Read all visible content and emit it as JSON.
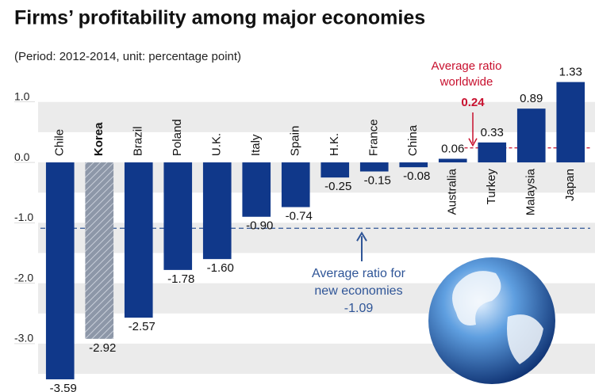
{
  "chart_data": {
    "type": "bar",
    "title": "Firms’ profitability among major economies",
    "subtitle": "(Period: 2012-2014, unit: percentage point)",
    "categories": [
      "Chile",
      "Korea",
      "Brazil",
      "Poland",
      "U.K.",
      "Italy",
      "Spain",
      "H.K.",
      "France",
      "China",
      "Australia",
      "Turkey",
      "Malaysia",
      "Japan"
    ],
    "values": [
      -3.59,
      -2.92,
      -2.57,
      -1.78,
      -1.6,
      -0.9,
      -0.74,
      -0.25,
      -0.15,
      -0.08,
      0.06,
      0.33,
      0.89,
      1.33
    ],
    "value_labels": [
      "-3.59",
      "-2.92",
      "-2.57",
      "-1.78",
      "-1.60",
      "-0.90",
      "-0.74",
      "-0.25",
      "-0.15",
      "-0.08",
      "0.06",
      "0.33",
      "0.89",
      "1.33"
    ],
    "color": "#10388a",
    "highlight_index": 1,
    "highlight_color": "#8d97a8",
    "ylim": [
      -3.8,
      1.6
    ],
    "yticks": [
      {
        "value": 1,
        "label": "1.0"
      },
      {
        "value": 0,
        "label": "0.0"
      },
      {
        "value": -1,
        "label": "-1.0"
      },
      {
        "value": -2,
        "label": "-2.0"
      },
      {
        "value": -3,
        "label": "-3.0"
      }
    ],
    "reference_lines": [
      {
        "label_lines": [
          "Average ratio",
          "worldwide"
        ],
        "value": 0.24,
        "value_label": "0.24",
        "color": "#c8102e"
      },
      {
        "label_lines": [
          "Average ratio for",
          "new economies"
        ],
        "value": -1.09,
        "value_label": "-1.09",
        "color": "#2f5597"
      }
    ]
  }
}
